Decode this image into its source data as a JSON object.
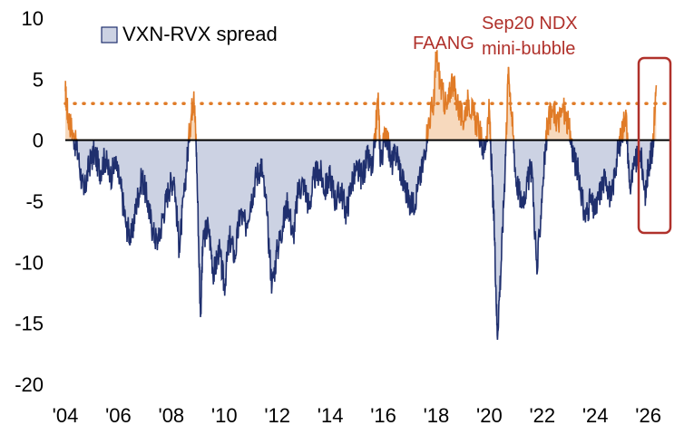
{
  "chart_data": {
    "type": "area",
    "legend": {
      "label": "VXN-RVX spread",
      "placement": "top-left"
    },
    "x_ticks": [
      "'04",
      "'06",
      "'08",
      "'10",
      "'12",
      "'14",
      "'16",
      "'18",
      "'20",
      "'22",
      "'24",
      "'26"
    ],
    "x_tick_years": [
      2004,
      2006,
      2008,
      2010,
      2012,
      2014,
      2016,
      2018,
      2020,
      2022,
      2024,
      2026
    ],
    "y_ticks": [
      10,
      5,
      0,
      -5,
      -10,
      -15,
      -20
    ],
    "xlim": [
      2004,
      2026.8
    ],
    "ylim": [
      -20,
      10
    ],
    "threshold": 3,
    "series": [
      {
        "name": "VXN-RVX spread",
        "points": [
          [
            2004.0,
            4.0
          ],
          [
            2004.1,
            2.0
          ],
          [
            2004.3,
            0.5
          ],
          [
            2004.5,
            -1.5
          ],
          [
            2004.7,
            -4.5
          ],
          [
            2004.9,
            -2.0
          ],
          [
            2005.1,
            -1.0
          ],
          [
            2005.3,
            -2.5
          ],
          [
            2005.5,
            -1.5
          ],
          [
            2005.7,
            -3.0
          ],
          [
            2005.9,
            -2.0
          ],
          [
            2006.1,
            -4.0
          ],
          [
            2006.3,
            -7.0
          ],
          [
            2006.5,
            -8.0
          ],
          [
            2006.7,
            -5.0
          ],
          [
            2006.9,
            -3.0
          ],
          [
            2007.1,
            -5.0
          ],
          [
            2007.3,
            -7.5
          ],
          [
            2007.5,
            -8.5
          ],
          [
            2007.7,
            -6.0
          ],
          [
            2007.9,
            -4.0
          ],
          [
            2008.1,
            -3.0
          ],
          [
            2008.3,
            -9.0
          ],
          [
            2008.5,
            -4.0
          ],
          [
            2008.7,
            1.0
          ],
          [
            2008.85,
            4.0
          ],
          [
            2008.95,
            -1.0
          ],
          [
            2009.1,
            -14.5
          ],
          [
            2009.2,
            -8.0
          ],
          [
            2009.4,
            -7.0
          ],
          [
            2009.6,
            -11.0
          ],
          [
            2009.8,
            -9.0
          ],
          [
            2010.0,
            -12.0
          ],
          [
            2010.2,
            -8.0
          ],
          [
            2010.4,
            -9.5
          ],
          [
            2010.6,
            -6.0
          ],
          [
            2010.8,
            -7.0
          ],
          [
            2011.0,
            -5.0
          ],
          [
            2011.2,
            -3.0
          ],
          [
            2011.4,
            -2.0
          ],
          [
            2011.6,
            -6.0
          ],
          [
            2011.8,
            -12.0
          ],
          [
            2012.0,
            -9.0
          ],
          [
            2012.2,
            -7.0
          ],
          [
            2012.4,
            -5.0
          ],
          [
            2012.6,
            -8.0
          ],
          [
            2012.8,
            -4.0
          ],
          [
            2013.0,
            -3.5
          ],
          [
            2013.2,
            -5.5
          ],
          [
            2013.4,
            -3.0
          ],
          [
            2013.6,
            -2.5
          ],
          [
            2013.8,
            -4.0
          ],
          [
            2014.0,
            -3.0
          ],
          [
            2014.2,
            -5.0
          ],
          [
            2014.4,
            -4.0
          ],
          [
            2014.6,
            -6.0
          ],
          [
            2014.8,
            -3.5
          ],
          [
            2015.0,
            -2.5
          ],
          [
            2015.2,
            -3.0
          ],
          [
            2015.4,
            -1.5
          ],
          [
            2015.6,
            -2.5
          ],
          [
            2015.8,
            3.5
          ],
          [
            2015.9,
            -2.0
          ],
          [
            2016.1,
            1.0
          ],
          [
            2016.3,
            -2.0
          ],
          [
            2016.5,
            -1.0
          ],
          [
            2016.7,
            -3.0
          ],
          [
            2016.9,
            -4.5
          ],
          [
            2017.1,
            -5.5
          ],
          [
            2017.3,
            -4.0
          ],
          [
            2017.5,
            -2.0
          ],
          [
            2017.7,
            1.5
          ],
          [
            2017.9,
            3.0
          ],
          [
            2018.0,
            7.0
          ],
          [
            2018.2,
            4.0
          ],
          [
            2018.4,
            2.5
          ],
          [
            2018.6,
            5.0
          ],
          [
            2018.8,
            3.0
          ],
          [
            2019.0,
            1.5
          ],
          [
            2019.2,
            3.5
          ],
          [
            2019.4,
            2.0
          ],
          [
            2019.6,
            1.0
          ],
          [
            2019.8,
            -1.0
          ],
          [
            2020.0,
            2.5
          ],
          [
            2020.1,
            -3.0
          ],
          [
            2020.2,
            -8.0
          ],
          [
            2020.3,
            -16.0
          ],
          [
            2020.45,
            -10.0
          ],
          [
            2020.6,
            -2.0
          ],
          [
            2020.72,
            6.0
          ],
          [
            2020.85,
            2.0
          ],
          [
            2021.0,
            -3.0
          ],
          [
            2021.2,
            -5.0
          ],
          [
            2021.4,
            -4.0
          ],
          [
            2021.6,
            -2.0
          ],
          [
            2021.8,
            -11.0
          ],
          [
            2022.0,
            -4.0
          ],
          [
            2022.2,
            1.5
          ],
          [
            2022.4,
            2.5
          ],
          [
            2022.6,
            1.5
          ],
          [
            2022.8,
            2.5
          ],
          [
            2023.0,
            1.0
          ],
          [
            2023.2,
            -1.5
          ],
          [
            2023.4,
            -3.0
          ],
          [
            2023.6,
            -6.5
          ],
          [
            2023.8,
            -5.0
          ],
          [
            2024.0,
            -6.0
          ],
          [
            2024.2,
            -4.0
          ],
          [
            2024.4,
            -3.0
          ],
          [
            2024.6,
            -5.0
          ],
          [
            2024.8,
            -1.5
          ],
          [
            2025.0,
            0.5
          ],
          [
            2025.15,
            2.5
          ],
          [
            2025.3,
            -4.0
          ],
          [
            2025.5,
            -2.0
          ],
          [
            2025.7,
            -1.0
          ],
          [
            2025.9,
            -4.5
          ],
          [
            2026.0,
            -2.0
          ],
          [
            2026.15,
            -1.0
          ],
          [
            2026.3,
            4.5
          ]
        ]
      }
    ],
    "annotations": [
      {
        "text": "FAANG",
        "color": "#b0312b"
      },
      {
        "text": "Sep20 NDX",
        "color": "#b0312b"
      },
      {
        "text": "mini-bubble",
        "color": "#b0312b"
      }
    ],
    "colors": {
      "positive": "#e07b27",
      "negative_line": "#1f2f6e",
      "negative_fill": "#ccd2e3",
      "threshold": "#e07b27",
      "highlight_box": "#b0312b",
      "zero_line": "#000000"
    },
    "grid": false
  }
}
